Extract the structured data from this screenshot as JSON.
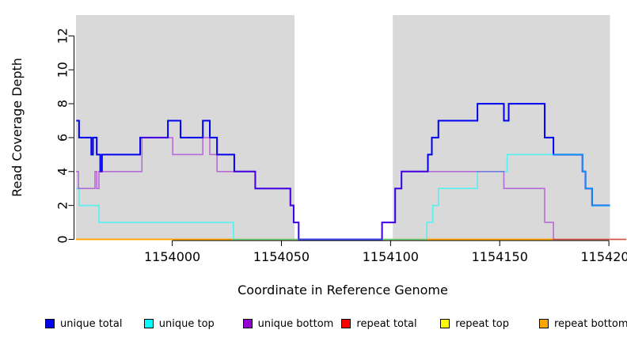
{
  "chart_data": {
    "type": "line",
    "subtype": "step-coverage",
    "title": "",
    "xlabel": "Coordinate in Reference Genome",
    "ylabel": "Read Coverage Depth",
    "xlim": [
      1153955.9,
      1154200.5
    ],
    "ylim": [
      0,
      13.23
    ],
    "grid": false,
    "plot_bg": "#D9D9D9",
    "page_bg": "#FFFFFF",
    "highlight_region": {
      "x1": 1154056,
      "x2": 1154101,
      "color": "#FFFFFF",
      "note": "uncovered gap drawn as white band"
    },
    "x_ticks": [
      {
        "v": 1154000,
        "label": "1154000"
      },
      {
        "v": 1154050,
        "label": "1154050"
      },
      {
        "v": 1154100,
        "label": "1154100"
      },
      {
        "v": 1154150,
        "label": "1154150"
      },
      {
        "v": 1154200,
        "label": "1154200"
      }
    ],
    "y_ticks": [
      0,
      2,
      4,
      6,
      8,
      10,
      12
    ],
    "series": [
      {
        "name": "repeat total",
        "color": "#FF0000",
        "opacity": 1,
        "width": 1.5,
        "xend": 1154208,
        "steps": [
          [
            1153956,
            0
          ]
        ]
      },
      {
        "name": "repeat top",
        "color": "#FFFF00",
        "opacity": 1,
        "width": 1.5,
        "xend": 1154208,
        "steps": [
          [
            1153956,
            0
          ]
        ]
      },
      {
        "name": "repeat bottom",
        "color": "#FFA500",
        "opacity": 1,
        "width": 1.5,
        "xend": 1154208,
        "steps": [
          [
            1153956,
            0
          ]
        ]
      },
      {
        "name": "unique total",
        "color": "#0000EE",
        "opacity": 1,
        "width": 2,
        "xend": 1154200.5,
        "steps": [
          [
            1153956,
            7
          ],
          [
            1153957.3,
            6
          ],
          [
            1153962.9,
            5
          ],
          [
            1153963.7,
            6
          ],
          [
            1153965.4,
            5
          ],
          [
            1153967,
            4
          ],
          [
            1153967.8,
            5
          ],
          [
            1153985.3,
            6
          ],
          [
            1153998,
            7
          ],
          [
            1154003.8,
            6
          ],
          [
            1154014,
            7
          ],
          [
            1154017.2,
            6
          ],
          [
            1154020.5,
            5
          ],
          [
            1154028.4,
            4
          ],
          [
            1154038,
            3
          ],
          [
            1154054.1,
            2
          ],
          [
            1154055.6,
            1
          ],
          [
            1154057.9,
            0
          ],
          [
            1154096.1,
            1
          ],
          [
            1154102.1,
            3
          ],
          [
            1154105,
            4
          ],
          [
            1154117.1,
            5
          ],
          [
            1154118.9,
            6
          ],
          [
            1154121.9,
            7
          ],
          [
            1154139.8,
            8
          ],
          [
            1154151.9,
            7
          ],
          [
            1154154.1,
            8
          ],
          [
            1154170.6,
            6
          ],
          [
            1154174.6,
            5
          ],
          [
            1154187.9,
            4
          ],
          [
            1154189.3,
            3
          ],
          [
            1154192.3,
            2
          ]
        ]
      },
      {
        "name": "unique top",
        "color": "#00FFFF",
        "opacity": 0.6,
        "width": 1.6,
        "xend": 1154200.5,
        "steps": [
          [
            1153956,
            3
          ],
          [
            1153957.3,
            2
          ],
          [
            1153966.4,
            1
          ],
          [
            1154028,
            0
          ],
          [
            1154116.6,
            1
          ],
          [
            1154119.3,
            2
          ],
          [
            1154121.9,
            3
          ],
          [
            1154139.8,
            4
          ],
          [
            1154153.4,
            5
          ],
          [
            1154187.9,
            4
          ],
          [
            1154189.3,
            3
          ],
          [
            1154192.3,
            2
          ]
        ]
      },
      {
        "name": "unique bottom",
        "color": "#9400D3",
        "opacity": 0.5,
        "width": 1.6,
        "xend": 1154208,
        "steps": [
          [
            1153956,
            4
          ],
          [
            1153957,
            3
          ],
          [
            1153964.6,
            4
          ],
          [
            1153965.4,
            3
          ],
          [
            1153966.4,
            4
          ],
          [
            1153986.1,
            6
          ],
          [
            1154000.2,
            5
          ],
          [
            1154014,
            6
          ],
          [
            1154017.2,
            5
          ],
          [
            1154020.5,
            4
          ],
          [
            1154038,
            3
          ],
          [
            1154054.1,
            2
          ],
          [
            1154055.6,
            1
          ],
          [
            1154057.9,
            0
          ],
          [
            1154096.1,
            1
          ],
          [
            1154102.1,
            3
          ],
          [
            1154105,
            4
          ],
          [
            1154151.9,
            3
          ],
          [
            1154170.6,
            1
          ],
          [
            1154174.6,
            0
          ]
        ]
      }
    ],
    "legend": [
      {
        "label": "unique total",
        "color": "#0000EE"
      },
      {
        "label": "unique top",
        "color": "#00FFFF"
      },
      {
        "label": "unique bottom",
        "color": "#9400D3"
      },
      {
        "label": "repeat total",
        "color": "#FF0000"
      },
      {
        "label": "repeat top",
        "color": "#FFFF00"
      },
      {
        "label": "repeat bottom",
        "color": "#FFA500"
      }
    ],
    "legend_position": "bottom"
  }
}
